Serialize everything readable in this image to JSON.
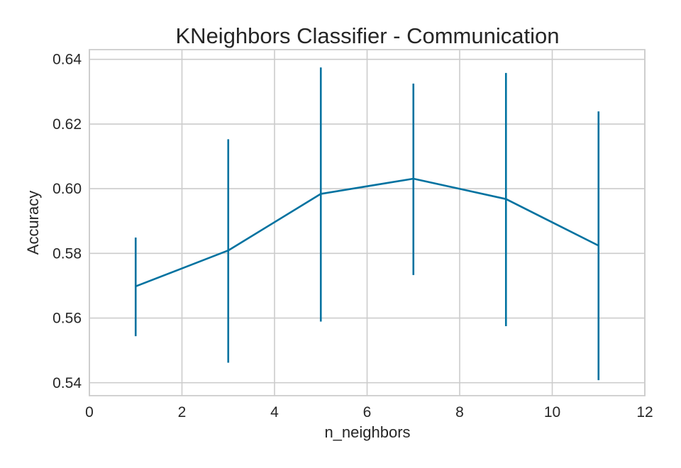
{
  "chart_data": {
    "type": "line",
    "title": "KNeighbors Classifier - Communication",
    "xlabel": "n_neighbors",
    "ylabel": "Accuracy",
    "xlim": [
      0,
      12
    ],
    "ylim": [
      0.536,
      0.643
    ],
    "xticks": [
      0,
      2,
      4,
      6,
      8,
      10,
      12
    ],
    "xtick_labels": [
      "0",
      "2",
      "4",
      "6",
      "8",
      "10",
      "12"
    ],
    "yticks": [
      0.54,
      0.56,
      0.58,
      0.6,
      0.62,
      0.64
    ],
    "ytick_labels": [
      "0.54",
      "0.56",
      "0.58",
      "0.60",
      "0.62",
      "0.64"
    ],
    "grid": true,
    "series": [
      {
        "color": "#0072a0",
        "x": [
          1,
          3,
          5,
          7,
          9,
          11
        ],
        "y": [
          0.5698,
          0.5809,
          0.5984,
          0.6031,
          0.5968,
          0.5824
        ],
        "error_low": [
          0.5544,
          0.5462,
          0.5589,
          0.5733,
          0.5575,
          0.5408
        ],
        "error_high": [
          0.5849,
          0.6153,
          0.6375,
          0.6325,
          0.6358,
          0.6239
        ]
      }
    ]
  }
}
